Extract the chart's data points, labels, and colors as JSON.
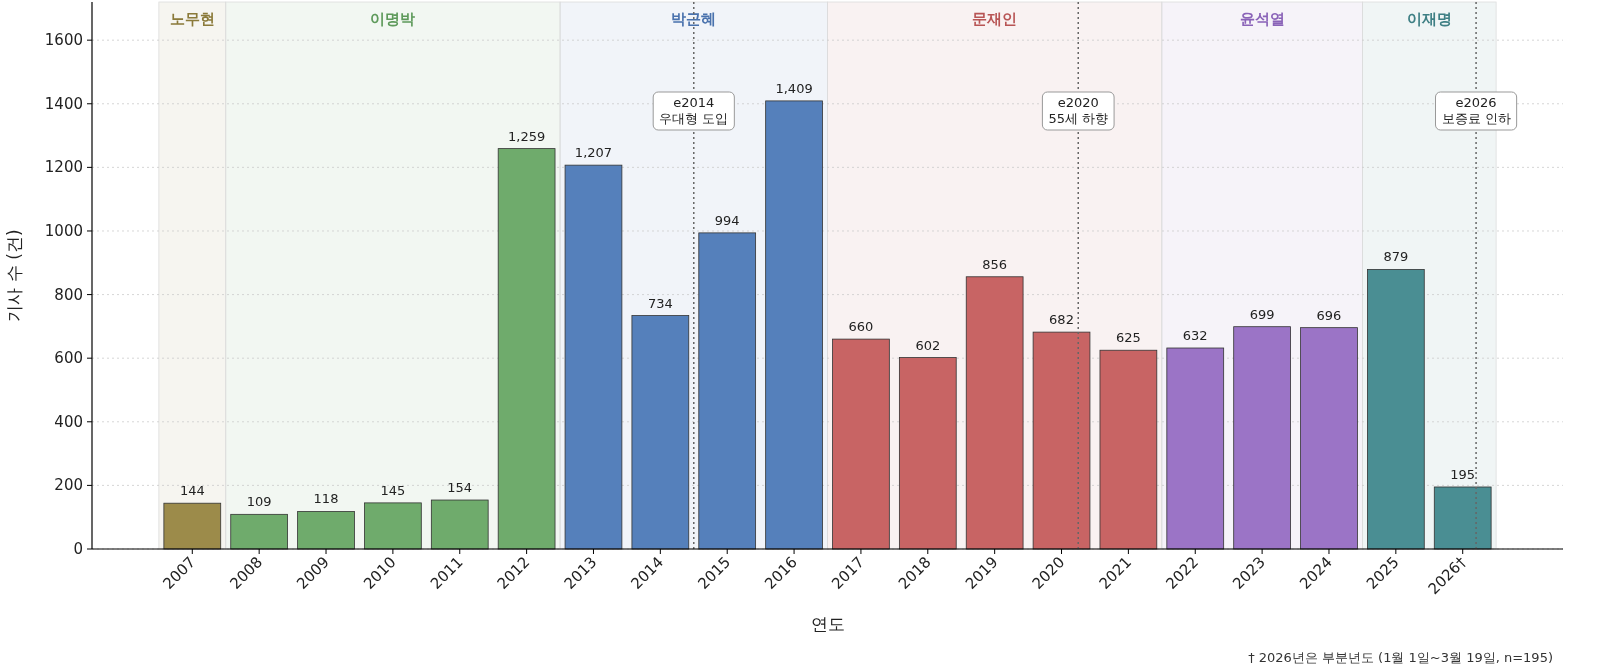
{
  "chart_data": {
    "type": "bar",
    "x": [
      2007,
      2008,
      2009,
      2010,
      2011,
      2012,
      2013,
      2014,
      2015,
      2016,
      2017,
      2018,
      2019,
      2020,
      2021,
      2022,
      2023,
      2024,
      2025,
      2026
    ],
    "values": [
      144,
      109,
      118,
      145,
      154,
      1259,
      1207,
      734,
      994,
      1409,
      660,
      602,
      856,
      682,
      625,
      632,
      699,
      696,
      879,
      195
    ],
    "value_labels": [
      "144",
      "109",
      "118",
      "145",
      "154",
      "1,259",
      "1,207",
      "734",
      "994",
      "1,409",
      "660",
      "602",
      "856",
      "682",
      "625",
      "632",
      "699",
      "696",
      "879",
      "195"
    ],
    "colors": [
      "#9c8b4a",
      "#6fab6c",
      "#6fab6c",
      "#6fab6c",
      "#6fab6c",
      "#6fab6c",
      "#5580bb",
      "#5580bb",
      "#5580bb",
      "#5580bb",
      "#c86464",
      "#c86464",
      "#c86464",
      "#c86464",
      "#c86464",
      "#9b74c6",
      "#9b74c6",
      "#9b74c6",
      "#4a8e93",
      "#4a8e93"
    ],
    "xlim": [
      2005.5,
      2027.5
    ],
    "xticks": [
      2007,
      2008,
      2009,
      2010,
      2011,
      2012,
      2013,
      2014,
      2015,
      2016,
      2017,
      2018,
      2019,
      2020,
      2021,
      2022,
      2023,
      2024,
      2025,
      {
        "value": 2026,
        "label": "2026†"
      }
    ],
    "ylim": [
      0,
      1720
    ],
    "yticks": [
      0,
      200,
      400,
      600,
      800,
      1000,
      1200,
      1400,
      1600
    ],
    "grid": "y",
    "xlabel": "연도",
    "ylabel": "기사 수 (건)",
    "bands": [
      {
        "axis": "x",
        "from": 2006.5,
        "to": 2007.5,
        "label": "노무현",
        "color": "#8b7a3a"
      },
      {
        "axis": "x",
        "from": 2007.5,
        "to": 2012.5,
        "label": "이명박",
        "color": "#5e9a5b"
      },
      {
        "axis": "x",
        "from": 2012.5,
        "to": 2016.5,
        "label": "박근혜",
        "color": "#4a72ad"
      },
      {
        "axis": "x",
        "from": 2016.5,
        "to": 2021.5,
        "label": "문재인",
        "color": "#b85555"
      },
      {
        "axis": "x",
        "from": 2021.5,
        "to": 2024.5,
        "label": "윤석열",
        "color": "#8a63b8"
      },
      {
        "axis": "x",
        "from": 2024.5,
        "to": 2026.5,
        "label": "이재명",
        "color": "#3e7f84"
      }
    ],
    "ref_lines": [
      {
        "axis": "x",
        "value": 2014.5,
        "label": "e2014\n우대형 도입",
        "color": "#666666",
        "line_style": "dotted"
      },
      {
        "axis": "x",
        "value": 2020.25,
        "label": "e2020\n55세 하향",
        "color": "#666666",
        "line_style": "dotted"
      },
      {
        "axis": "x",
        "value": 2026.2,
        "label": "e2026\n보증료 인하",
        "color": "#666666",
        "line_style": "dotted"
      }
    ],
    "annotations": [
      "† 2026년은 부분년도 (1월 1일~3월 19일, n=195)"
    ]
  }
}
